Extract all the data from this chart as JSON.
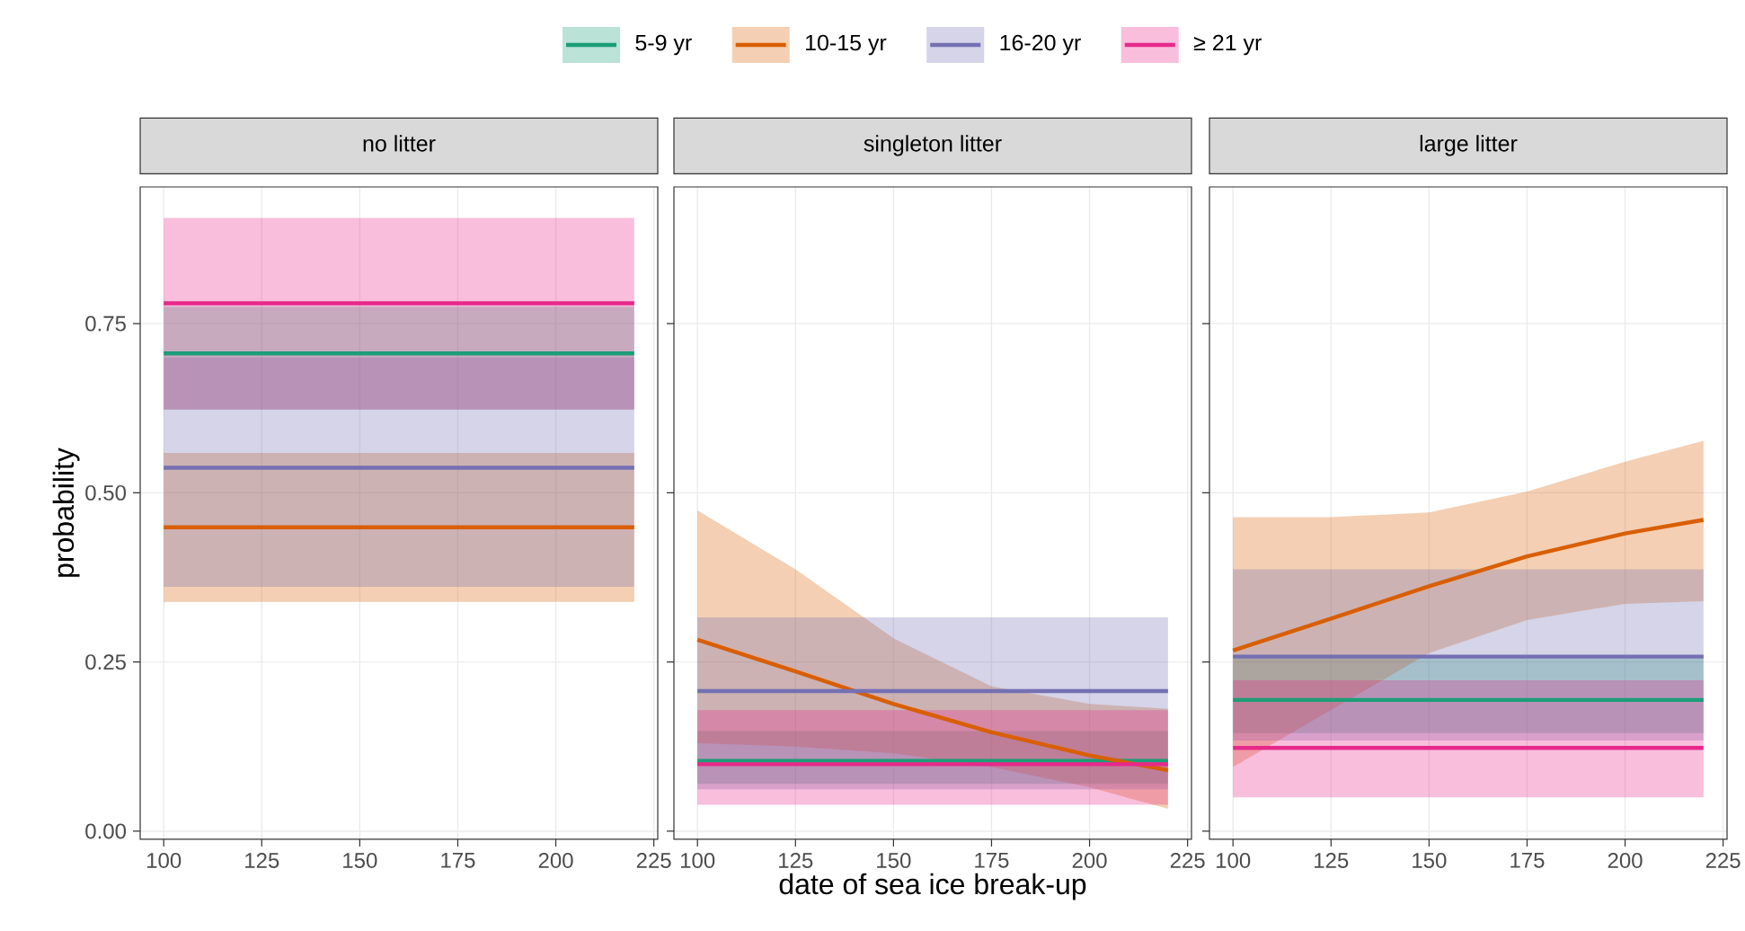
{
  "chart_data": [
    {
      "type": "line",
      "title": "no litter",
      "ylabel": "probability",
      "xlim": [
        94,
        226
      ],
      "xticks": [
        100,
        125,
        150,
        175,
        200,
        225
      ],
      "ylim": [
        -0.012,
        0.952
      ],
      "yticks": [
        {
          "value": 0,
          "label": "0.00"
        },
        {
          "value": 0.25,
          "label": "0.25"
        },
        {
          "value": 0.5,
          "label": "0.50"
        },
        {
          "value": 0.75,
          "label": "0.75"
        }
      ],
      "grid": true,
      "legend": "top",
      "series": [
        {
          "name": "5-9 yr",
          "color": "#1b9e77",
          "x": [
            100,
            220
          ],
          "values": [
            0.706,
            0.706
          ],
          "lower": [
            0.623,
            0.623
          ],
          "upper": [
            0.775,
            0.775
          ]
        },
        {
          "name": "10-15 yr",
          "color": "#d95f02",
          "x": [
            100,
            220
          ],
          "values": [
            0.449,
            0.449
          ],
          "lower": [
            0.339,
            0.339
          ],
          "upper": [
            0.559,
            0.559
          ]
        },
        {
          "name": "16-20 yr",
          "color": "#7570b3",
          "x": [
            100,
            220
          ],
          "values": [
            0.537,
            0.537
          ],
          "lower": [
            0.361,
            0.361
          ],
          "upper": [
            0.7,
            0.7
          ]
        },
        {
          "name": "≥ 21 yr",
          "color": "#e7298a",
          "x": [
            100,
            220
          ],
          "values": [
            0.78,
            0.78
          ],
          "lower": [
            0.623,
            0.623
          ],
          "upper": [
            0.906,
            0.906
          ]
        }
      ]
    },
    {
      "type": "line",
      "title": "singleton litter",
      "xlabel": "date of sea ice break-up",
      "xlim": [
        94,
        226
      ],
      "xticks": [
        100,
        125,
        150,
        175,
        200,
        225
      ],
      "ylim": [
        -0.012,
        0.952
      ],
      "yticks": [
        {
          "value": 0,
          "label": null
        },
        {
          "value": 0.25,
          "label": null
        },
        {
          "value": 0.5,
          "label": null
        },
        {
          "value": 0.75,
          "label": null
        }
      ],
      "grid": true,
      "tick_labels": "x",
      "series": [
        {
          "color": "#1b9e77",
          "x": [
            100,
            220
          ],
          "values": [
            0.104,
            0.104
          ],
          "lower": [
            0.07,
            0.07
          ],
          "upper": [
            0.148,
            0.148
          ]
        },
        {
          "color": "#d95f02",
          "x": [
            100,
            125,
            150,
            175,
            200,
            220
          ],
          "values": [
            0.283,
            0.236,
            0.188,
            0.146,
            0.112,
            0.09
          ],
          "lower": [
            0.13,
            0.125,
            0.115,
            0.095,
            0.065,
            0.033
          ],
          "upper": [
            0.474,
            0.387,
            0.285,
            0.214,
            0.188,
            0.181
          ]
        },
        {
          "color": "#7570b3",
          "x": [
            100,
            220
          ],
          "values": [
            0.207,
            0.207
          ],
          "lower": [
            0.062,
            0.062
          ],
          "upper": [
            0.316,
            0.316
          ]
        },
        {
          "color": "#e7298a",
          "x": [
            100,
            220
          ],
          "values": [
            0.099,
            0.099
          ],
          "lower": [
            0.039,
            0.039
          ],
          "upper": [
            0.179,
            0.179
          ]
        }
      ]
    },
    {
      "type": "line",
      "title": "large litter",
      "xlim": [
        94,
        226
      ],
      "xticks": [
        100,
        125,
        150,
        175,
        200,
        225
      ],
      "ylim": [
        -0.012,
        0.952
      ],
      "yticks": [
        {
          "value": 0,
          "label": null
        },
        {
          "value": 0.25,
          "label": null
        },
        {
          "value": 0.5,
          "label": null
        },
        {
          "value": 0.75,
          "label": null
        }
      ],
      "grid": true,
      "tick_labels": "x",
      "series": [
        {
          "color": "#1b9e77",
          "x": [
            100,
            220
          ],
          "values": [
            0.194,
            0.194
          ],
          "lower": [
            0.145,
            0.145
          ],
          "upper": [
            0.26,
            0.26
          ]
        },
        {
          "color": "#d95f02",
          "x": [
            100,
            125,
            150,
            175,
            200,
            220
          ],
          "values": [
            0.267,
            0.314,
            0.362,
            0.406,
            0.44,
            0.46
          ],
          "lower": [
            0.095,
            0.179,
            0.263,
            0.312,
            0.336,
            0.34
          ],
          "upper": [
            0.464,
            0.464,
            0.471,
            0.502,
            0.546,
            0.577
          ]
        },
        {
          "color": "#7570b3",
          "x": [
            100,
            220
          ],
          "values": [
            0.258,
            0.258
          ],
          "lower": [
            0.134,
            0.134
          ],
          "upper": [
            0.387,
            0.387
          ]
        },
        {
          "color": "#e7298a",
          "x": [
            100,
            220
          ],
          "values": [
            0.123,
            0.123
          ],
          "lower": [
            0.05,
            0.05
          ],
          "upper": [
            0.223,
            0.223
          ]
        }
      ]
    }
  ]
}
